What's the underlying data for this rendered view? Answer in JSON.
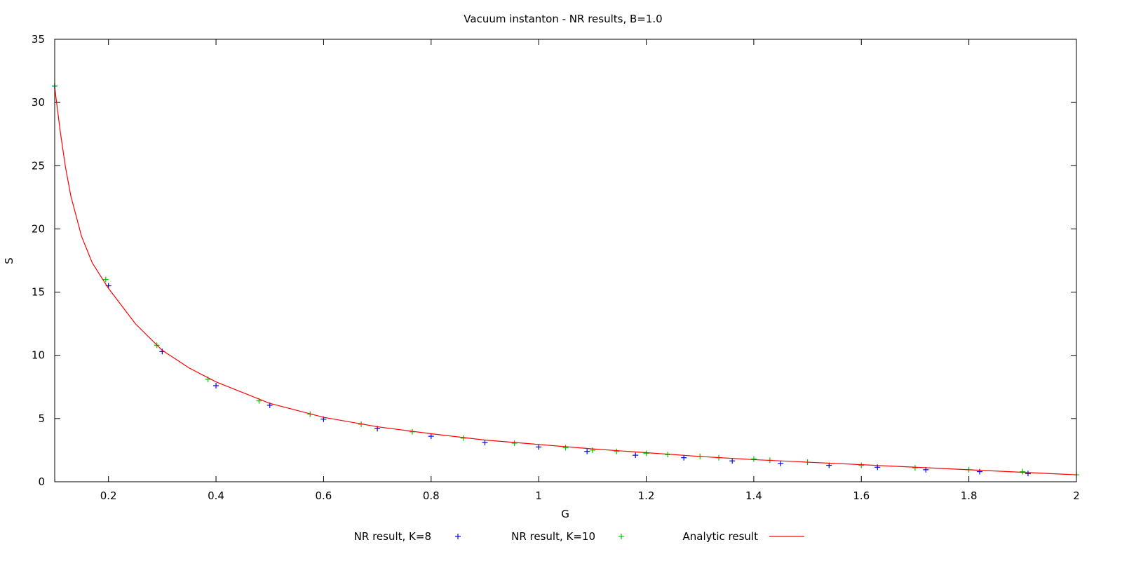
{
  "chart_data": {
    "type": "line",
    "title": "Vacuum instanton - NR results, B=1.0",
    "xlabel": "G",
    "ylabel": "S",
    "xlim": [
      0.1,
      2.0
    ],
    "ylim": [
      0,
      35
    ],
    "xticks": [
      0.2,
      0.4,
      0.6,
      0.8,
      1.0,
      1.2,
      1.4,
      1.6,
      1.8,
      2.0
    ],
    "xtick_labels": [
      "0.2",
      "0.4",
      "0.6",
      "0.8",
      "1",
      "1.2",
      "1.4",
      "1.6",
      "1.8",
      "2"
    ],
    "yticks": [
      0,
      5,
      10,
      15,
      20,
      25,
      30,
      35
    ],
    "ytick_labels": [
      "0",
      "5",
      "10",
      "15",
      "20",
      "25",
      "30",
      "35"
    ],
    "grid": false,
    "legend_position": "bottom-center",
    "series": [
      {
        "name": "NR result, K=8",
        "style": "points",
        "marker": "plus",
        "color": "#0000ff",
        "x": [
          0.1,
          0.2,
          0.3,
          0.4,
          0.5,
          0.6,
          0.7,
          0.8,
          0.9,
          1.0,
          1.09,
          1.18,
          1.27,
          1.36,
          1.45,
          1.54,
          1.63,
          1.72,
          1.82,
          1.91
        ],
        "y": [
          31.3,
          15.5,
          10.3,
          7.6,
          6.05,
          4.95,
          4.2,
          3.6,
          3.1,
          2.75,
          2.4,
          2.1,
          1.9,
          1.65,
          1.45,
          1.3,
          1.15,
          0.95,
          0.8,
          0.65
        ]
      },
      {
        "name": "NR result, K=10",
        "style": "points",
        "marker": "plus",
        "color": "#00cc00",
        "x": [
          0.1,
          0.195,
          0.29,
          0.385,
          0.48,
          0.575,
          0.67,
          0.765,
          0.86,
          0.955,
          1.05,
          1.1,
          1.145,
          1.2,
          1.24,
          1.3,
          1.335,
          1.4,
          1.43,
          1.5,
          1.6,
          1.7,
          1.8,
          1.9,
          2.0
        ],
        "y": [
          31.3,
          16.0,
          10.8,
          8.1,
          6.4,
          5.35,
          4.55,
          3.95,
          3.45,
          3.05,
          2.7,
          2.5,
          2.4,
          2.25,
          2.15,
          2.0,
          1.9,
          1.8,
          1.7,
          1.55,
          1.3,
          1.1,
          0.95,
          0.8,
          0.55
        ]
      },
      {
        "name": "Analytic result",
        "style": "line",
        "color": "#ff0000",
        "x": [
          0.1,
          0.11,
          0.12,
          0.13,
          0.15,
          0.17,
          0.2,
          0.25,
          0.3,
          0.35,
          0.4,
          0.5,
          0.6,
          0.7,
          0.8,
          0.9,
          1.0,
          1.1,
          1.2,
          1.3,
          1.4,
          1.5,
          1.6,
          1.7,
          1.8,
          1.9,
          2.0
        ],
        "y": [
          31.2,
          27.8,
          24.9,
          22.6,
          19.4,
          17.3,
          15.3,
          12.5,
          10.4,
          9.0,
          7.9,
          6.2,
          5.1,
          4.35,
          3.8,
          3.3,
          2.95,
          2.6,
          2.3,
          2.0,
          1.75,
          1.55,
          1.35,
          1.15,
          0.95,
          0.75,
          0.55
        ]
      }
    ]
  }
}
